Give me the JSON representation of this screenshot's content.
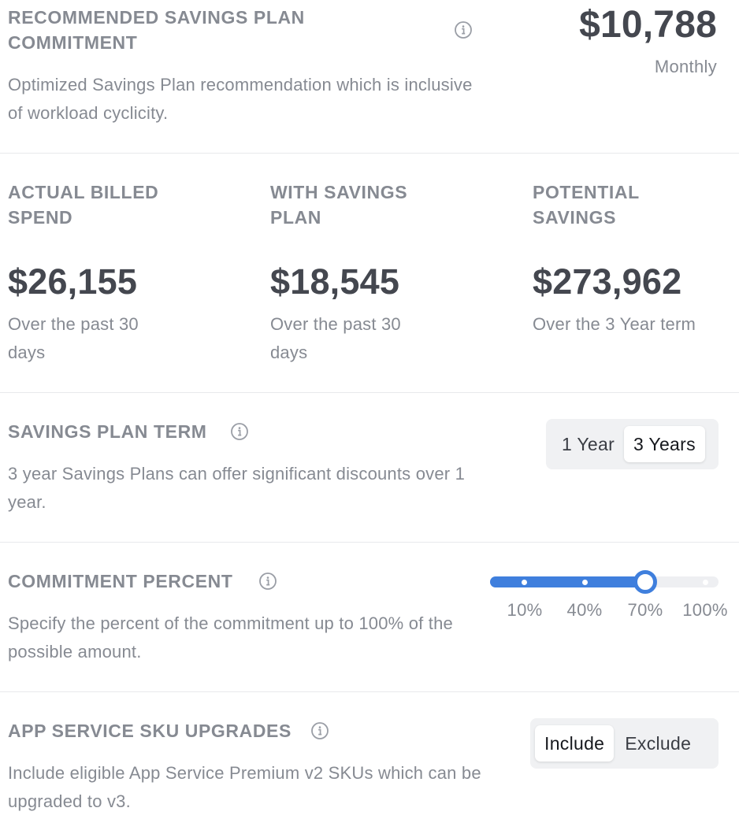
{
  "recommended": {
    "heading": "RECOMMENDED SAVINGS PLAN COMMITMENT",
    "description": "Optimized Savings Plan recommendation which is inclusive of workload cyclicity.",
    "amount": "$10,788",
    "period": "Monthly",
    "info_icon": "info-icon"
  },
  "stats": {
    "actual": {
      "heading": "ACTUAL BILLED SPEND",
      "value": "$26,155",
      "note": "Over the past 30 days"
    },
    "with_plan": {
      "heading": "WITH SAVINGS PLAN",
      "value": "$18,545",
      "note": "Over the past 30 days"
    },
    "potential": {
      "heading": "POTENTIAL SAVINGS",
      "value": "$273,962",
      "note": "Over the 3 Year term"
    }
  },
  "term": {
    "heading": "SAVINGS PLAN TERM",
    "description": "3 year Savings Plans can offer significant discounts over 1 year.",
    "options": [
      "1 Year",
      "3 Years"
    ],
    "selected": "3 Years"
  },
  "commitment": {
    "heading": "COMMITMENT PERCENT",
    "description": "Specify the percent of the commitment up to 100% of the possible amount.",
    "ticks": [
      "10%",
      "40%",
      "70%",
      "100%"
    ],
    "value_percent": 70
  },
  "sku": {
    "heading": "APP SERVICE SKU UPGRADES",
    "description": "Include eligible App Service Premium v2 SKUs which can be upgraded to v3.",
    "options": [
      "Include",
      "Exclude"
    ],
    "selected": "Include"
  },
  "colors": {
    "accent": "#3f7fdd",
    "heading_gray": "#868a92",
    "value_dark": "#44474f"
  }
}
